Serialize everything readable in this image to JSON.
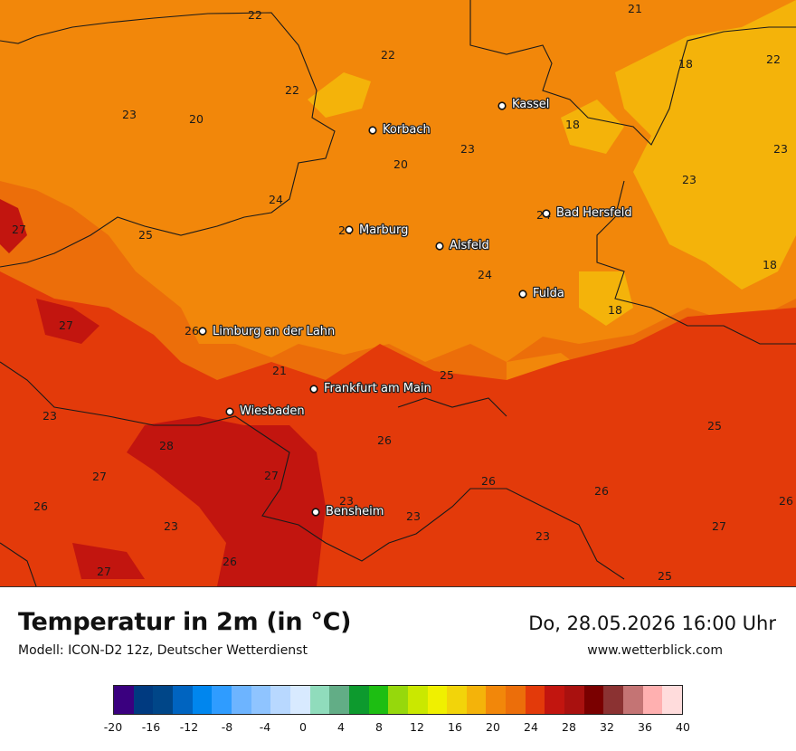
{
  "map": {
    "cities": [
      {
        "name": "Kassel"
      },
      {
        "name": "Korbach"
      },
      {
        "name": "Marburg"
      },
      {
        "name": "Alsfeld"
      },
      {
        "name": "Bad Hersfeld"
      },
      {
        "name": "Fulda"
      },
      {
        "name": "Limburg an der Lahn"
      },
      {
        "name": "Frankfurt am Main"
      },
      {
        "name": "Wiesbaden"
      },
      {
        "name": "Bensheim"
      }
    ],
    "temperature_labels": [
      "22",
      "21",
      "22",
      "22",
      "18",
      "23",
      "20",
      "22",
      "18",
      "23",
      "23",
      "20",
      "24",
      "23",
      "27",
      "25",
      "24",
      "24",
      "24",
      "18",
      "27",
      "26",
      "18",
      "21",
      "25",
      "23",
      "28",
      "26",
      "25",
      "27",
      "27",
      "26",
      "26",
      "26",
      "23",
      "23",
      "23",
      "26",
      "27",
      "27",
      "26",
      "23",
      "25"
    ]
  },
  "title": "Temperatur in 2m (in °C)",
  "model": "Modell: ICON-D2 12z, Deutscher Wetterdienst",
  "datetime": "Do, 28.05.2026 16:00 Uhr",
  "website": "www.wetterblick.com",
  "legend": {
    "colors": [
      "#3a007f",
      "#003a80",
      "#004688",
      "#0064c0",
      "#0086ee",
      "#2f9cff",
      "#6db4ff",
      "#8fc4ff",
      "#b8d8ff",
      "#d8eaff",
      "#90dcbc",
      "#62ad86",
      "#0d9a2e",
      "#1dbe12",
      "#96d80c",
      "#cae800",
      "#f0f000",
      "#f2d40a",
      "#f4b30a",
      "#f2870a",
      "#ec6e0a",
      "#e33a0a",
      "#c2150f",
      "#a9110f",
      "#7a0000",
      "#8b3232",
      "#c47474",
      "#ffb0b0",
      "#ffdcdc"
    ],
    "ticks": [
      "-20",
      "-16",
      "-12",
      "-8",
      "-4",
      "0",
      "4",
      "8",
      "12",
      "16",
      "20",
      "24",
      "28",
      "32",
      "36",
      "40"
    ]
  }
}
